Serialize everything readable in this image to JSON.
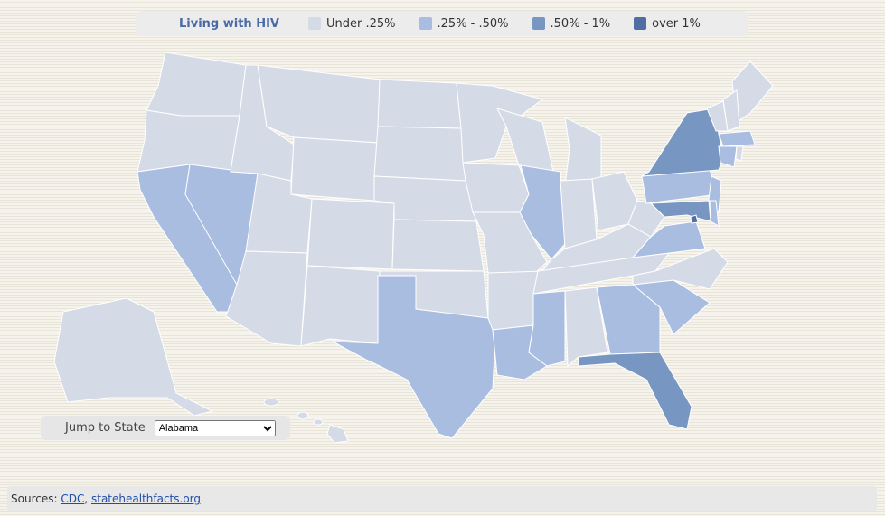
{
  "legend": {
    "title": "Living with HIV",
    "items": [
      {
        "label": "Under .25%",
        "color": "#d5dbe6"
      },
      {
        "label": ".25% - .50%",
        "color": "#a9bde0"
      },
      {
        "label": ".50% - 1%",
        "color": "#7896c2"
      },
      {
        "label": "over 1%",
        "color": "#4f6ea3"
      }
    ]
  },
  "jump": {
    "label": "Jump to State",
    "selected": "Alabama"
  },
  "sources": {
    "label": "Sources:",
    "links": [
      "CDC",
      "statehealthfacts.org"
    ],
    "separator": ","
  }
}
